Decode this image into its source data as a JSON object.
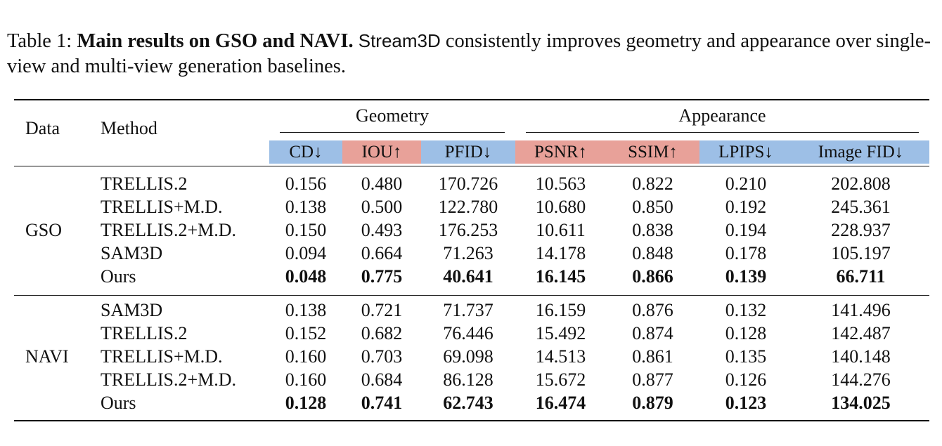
{
  "caption": {
    "prefix": "Table 1: ",
    "title": "Main results on GSO and NAVI.",
    "system_name": "Stream3D",
    "text": " consistently improves geometry and appearance over single-view and multi-view generation baselines."
  },
  "header": {
    "data": "Data",
    "method": "Method",
    "geometry": "Geometry",
    "appearance": "Appearance",
    "metrics": [
      {
        "label": "CD↓",
        "color": "#9dbfe6"
      },
      {
        "label": "IOU↑",
        "color": "#e8a199"
      },
      {
        "label": "PFID↓",
        "color": "#9dbfe6"
      },
      {
        "label": "PSNR↑",
        "color": "#e8a199"
      },
      {
        "label": "SSIM↑",
        "color": "#e8a199"
      },
      {
        "label": "LPIPS↓",
        "color": "#9dbfe6"
      },
      {
        "label": "Image FID↓",
        "color": "#9dbfe6"
      }
    ]
  },
  "groups": [
    {
      "name": "GSO",
      "rows": [
        {
          "method": "TRELLIS.2",
          "cd": "0.156",
          "iou": "0.480",
          "pfid": "170.726",
          "psnr": "10.563",
          "ssim": "0.822",
          "lpips": "0.210",
          "fid": "202.808"
        },
        {
          "method": "TRELLIS+M.D.",
          "cd": "0.138",
          "iou": "0.500",
          "pfid": "122.780",
          "psnr": "10.680",
          "ssim": "0.850",
          "lpips": "0.192",
          "fid": "245.361"
        },
        {
          "method": "TRELLIS.2+M.D.",
          "cd": "0.150",
          "iou": "0.493",
          "pfid": "176.253",
          "psnr": "10.611",
          "ssim": "0.838",
          "lpips": "0.194",
          "fid": "228.937"
        },
        {
          "method": "SAM3D",
          "cd": "0.094",
          "iou": "0.664",
          "pfid": "71.263",
          "psnr": "14.178",
          "ssim": "0.848",
          "lpips": "0.178",
          "fid": "105.197"
        },
        {
          "method": "Ours",
          "cd": "0.048",
          "iou": "0.775",
          "pfid": "40.641",
          "psnr": "16.145",
          "ssim": "0.866",
          "lpips": "0.139",
          "fid": "66.711"
        }
      ]
    },
    {
      "name": "NAVI",
      "rows": [
        {
          "method": "SAM3D",
          "cd": "0.138",
          "iou": "0.721",
          "pfid": "71.737",
          "psnr": "16.159",
          "ssim": "0.876",
          "lpips": "0.132",
          "fid": "141.496"
        },
        {
          "method": "TRELLIS.2",
          "cd": "0.152",
          "iou": "0.682",
          "pfid": "76.446",
          "psnr": "15.492",
          "ssim": "0.874",
          "lpips": "0.128",
          "fid": "142.487"
        },
        {
          "method": "TRELLIS+M.D.",
          "cd": "0.160",
          "iou": "0.703",
          "pfid": "69.098",
          "psnr": "14.513",
          "ssim": "0.861",
          "lpips": "0.135",
          "fid": "140.148"
        },
        {
          "method": "TRELLIS.2+M.D.",
          "cd": "0.160",
          "iou": "0.684",
          "pfid": "86.128",
          "psnr": "15.672",
          "ssim": "0.877",
          "lpips": "0.126",
          "fid": "144.276"
        },
        {
          "method": "Ours",
          "cd": "0.128",
          "iou": "0.741",
          "pfid": "62.743",
          "psnr": "16.474",
          "ssim": "0.879",
          "lpips": "0.123",
          "fid": "134.025"
        }
      ]
    }
  ]
}
